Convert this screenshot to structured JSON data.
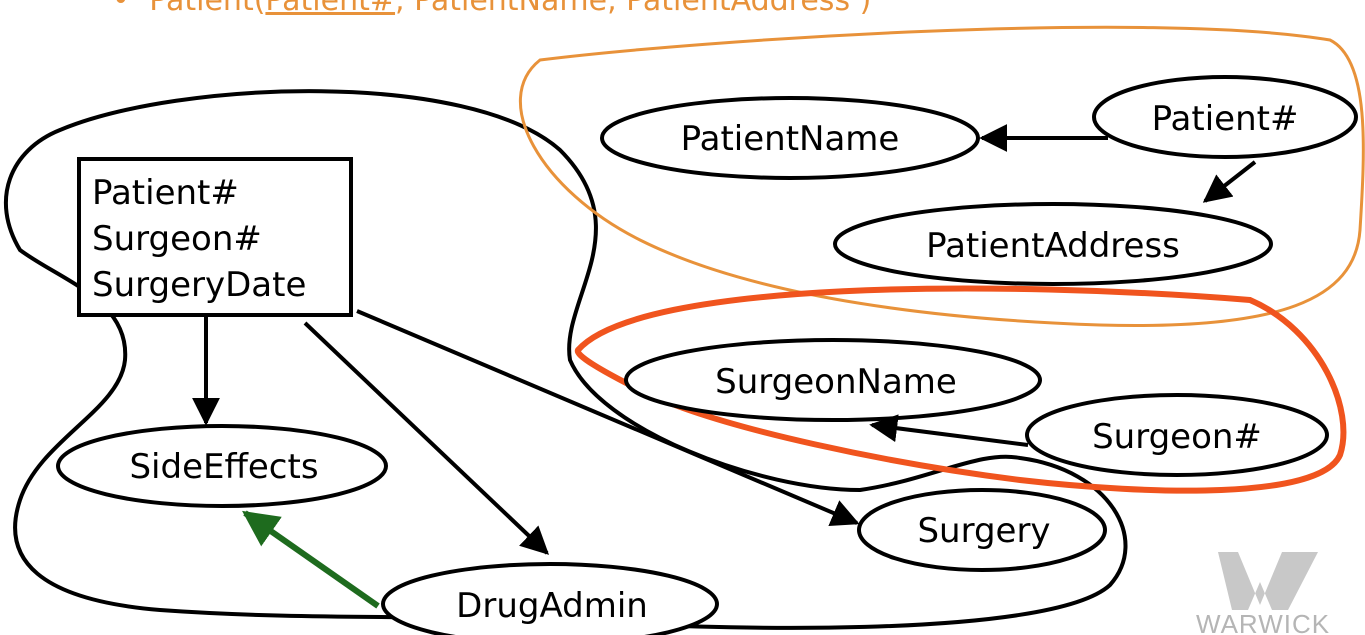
{
  "header": {
    "bullet": "•",
    "relation": "Patient(",
    "key": "Patient#",
    "rest": ", PatientName, PatientAddress )"
  },
  "box": {
    "lines": [
      "Patient#",
      "Surgeon#",
      "SurgeryDate"
    ]
  },
  "nodes": {
    "patient_name": "PatientName",
    "patient_num": "Patient#",
    "patient_address": "PatientAddress",
    "surgeon_name": "SurgeonName",
    "surgeon_num": "Surgeon#",
    "side_effects": "SideEffects",
    "surgery": "Surgery",
    "drug_admin": "DrugAdmin"
  },
  "logo": {
    "text": "WARWICK"
  },
  "colors": {
    "patient_group": "#e8923a",
    "surgeon_group": "#f0541e",
    "derived_arrow": "#1e6b1e",
    "outline": "#000000"
  }
}
